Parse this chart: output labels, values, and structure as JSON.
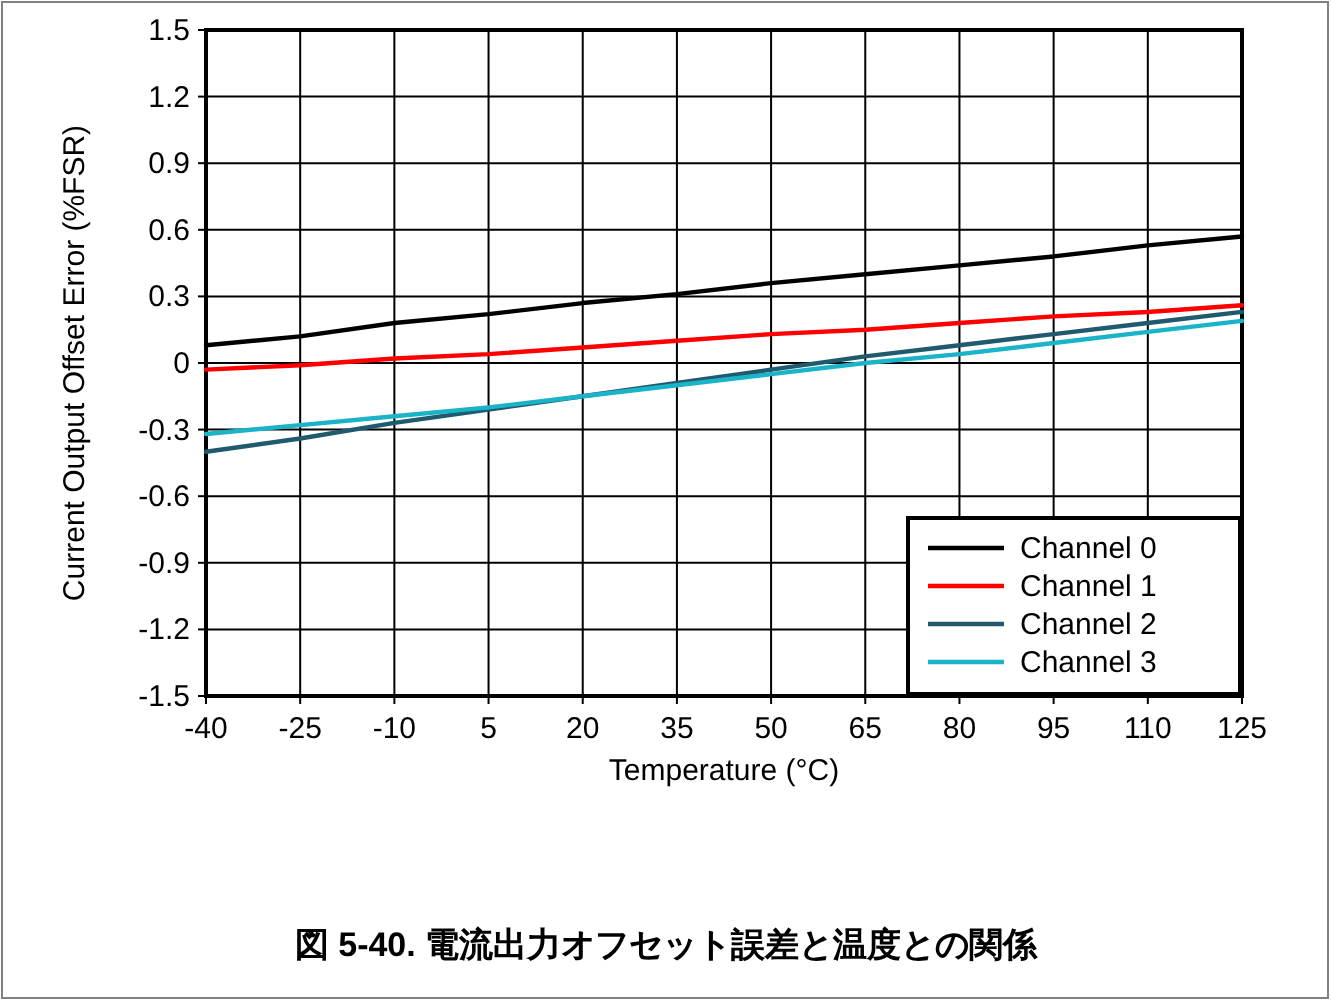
{
  "chart_data": {
    "type": "line",
    "xlabel": "Temperature (°C)",
    "ylabel": "Current Output Offset Error (%FSR)",
    "annotations": [
      "図 5-40. 電流出力オフセット誤差と温度との関係"
    ],
    "x": [
      -40,
      -25,
      -10,
      5,
      20,
      35,
      50,
      65,
      80,
      95,
      110,
      125
    ],
    "xlim": [
      -40,
      125
    ],
    "xticks": [
      -40,
      -25,
      -10,
      5,
      20,
      35,
      50,
      65,
      80,
      95,
      110,
      125
    ],
    "ylim": [
      -1.5,
      1.5
    ],
    "yticks": [
      -1.5,
      -1.2,
      -0.9,
      -0.6,
      -0.3,
      0,
      0.3,
      0.6,
      0.9,
      1.2,
      1.5
    ],
    "grid": true,
    "legend": "bottom right",
    "line_style": "solid",
    "series": [
      {
        "name": "Channel 0",
        "color": "#000000",
        "values": [
          0.08,
          0.12,
          0.18,
          0.22,
          0.27,
          0.31,
          0.36,
          0.4,
          0.44,
          0.48,
          0.53,
          0.57
        ]
      },
      {
        "name": "Channel 1",
        "color": "#ff0000",
        "values": [
          -0.03,
          -0.01,
          0.02,
          0.04,
          0.07,
          0.1,
          0.13,
          0.15,
          0.18,
          0.21,
          0.23,
          0.26
        ]
      },
      {
        "name": "Channel 2",
        "color": "#1f5a6e",
        "values": [
          -0.4,
          -0.34,
          -0.27,
          -0.21,
          -0.15,
          -0.09,
          -0.03,
          0.03,
          0.08,
          0.13,
          0.18,
          0.23
        ]
      },
      {
        "name": "Channel 3",
        "color": "#1ab3c8",
        "values": [
          -0.32,
          -0.28,
          -0.24,
          -0.2,
          -0.15,
          -0.1,
          -0.05,
          0.0,
          0.04,
          0.09,
          0.14,
          0.19
        ]
      }
    ]
  }
}
